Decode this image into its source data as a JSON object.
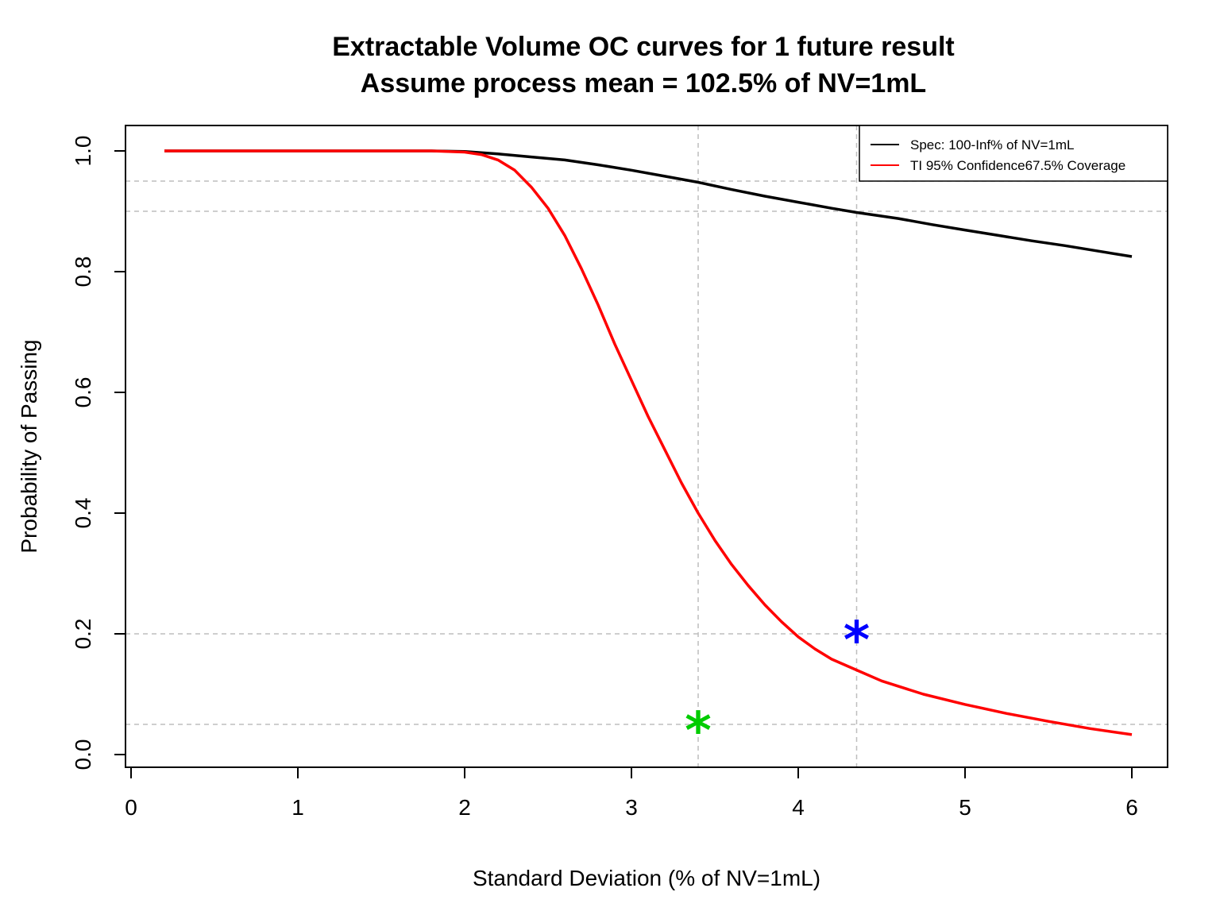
{
  "chart_data": {
    "type": "line",
    "title": "Extractable Volume OC curves for 1 future result",
    "subtitle": "Assume process mean = 102.5% of NV=1mL",
    "xlabel": "Standard Deviation (% of NV=1mL)",
    "ylabel": "Probability of Passing",
    "xlim": [
      0,
      6
    ],
    "ylim": [
      0.0,
      1.0
    ],
    "x_ticks": [
      "0",
      "1",
      "2",
      "3",
      "4",
      "5",
      "6"
    ],
    "y_ticks": [
      "0.0",
      "0.2",
      "0.4",
      "0.6",
      "0.8",
      "1.0"
    ],
    "grid": false,
    "legend_position": "top-right",
    "reference_lines": {
      "horizontal": [
        0.05,
        0.2,
        0.9,
        0.95
      ],
      "vertical": [
        3.4,
        4.35
      ],
      "color": "#bebebe",
      "style": "dashed"
    },
    "markers": [
      {
        "x": 3.4,
        "y": 0.05,
        "symbol": "*",
        "color": "#00cc00"
      },
      {
        "x": 4.35,
        "y": 0.2,
        "symbol": "*",
        "color": "#0000ff"
      }
    ],
    "series": [
      {
        "name": "Spec: 100-Inf% of NV=1mL",
        "color": "#000000",
        "x": [
          0.2,
          0.5,
          1.0,
          1.5,
          1.8,
          2.0,
          2.2,
          2.4,
          2.6,
          2.8,
          3.0,
          3.2,
          3.4,
          3.6,
          3.8,
          4.0,
          4.2,
          4.35,
          4.6,
          4.8,
          5.0,
          5.2,
          5.4,
          5.6,
          5.8,
          6.0
        ],
        "y": [
          1.0,
          1.0,
          1.0,
          1.0,
          1.0,
          0.999,
          0.995,
          0.99,
          0.985,
          0.977,
          0.968,
          0.958,
          0.948,
          0.936,
          0.925,
          0.915,
          0.905,
          0.898,
          0.888,
          0.878,
          0.869,
          0.86,
          0.851,
          0.843,
          0.834,
          0.825
        ]
      },
      {
        "name": "TI 95% Confidence67.5% Coverage",
        "color": "#ff0000",
        "x": [
          0.2,
          0.5,
          1.0,
          1.5,
          1.8,
          2.0,
          2.1,
          2.2,
          2.3,
          2.4,
          2.5,
          2.6,
          2.7,
          2.8,
          2.9,
          3.0,
          3.1,
          3.2,
          3.3,
          3.4,
          3.5,
          3.6,
          3.7,
          3.8,
          3.9,
          4.0,
          4.1,
          4.2,
          4.35,
          4.5,
          4.75,
          5.0,
          5.25,
          5.5,
          5.75,
          6.0
        ],
        "y": [
          1.0,
          1.0,
          1.0,
          1.0,
          1.0,
          0.998,
          0.994,
          0.985,
          0.968,
          0.94,
          0.905,
          0.86,
          0.805,
          0.745,
          0.68,
          0.62,
          0.56,
          0.505,
          0.45,
          0.4,
          0.355,
          0.315,
          0.28,
          0.248,
          0.22,
          0.195,
          0.175,
          0.158,
          0.14,
          0.122,
          0.1,
          0.083,
          0.068,
          0.055,
          0.043,
          0.033
        ]
      }
    ]
  }
}
